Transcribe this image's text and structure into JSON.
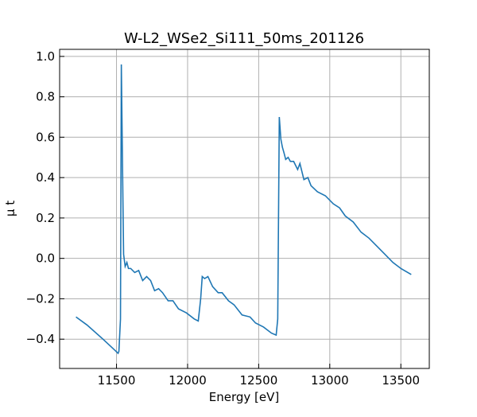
{
  "chart_data": {
    "type": "line",
    "title": "W-L2_WSe2_Si111_50ms_201126",
    "xlabel": "Energy [eV]",
    "ylabel": "μ t",
    "x": [
      11215,
      11293,
      11405,
      11489,
      11511,
      11517,
      11528,
      11534,
      11545,
      11550,
      11561,
      11573,
      11584,
      11600,
      11628,
      11656,
      11684,
      11712,
      11740,
      11768,
      11796,
      11824,
      11863,
      11897,
      11936,
      11992,
      12047,
      12075,
      12092,
      12103,
      12120,
      12143,
      12176,
      12215,
      12243,
      12288,
      12327,
      12383,
      12439,
      12478,
      12534,
      12590,
      12623,
      12634,
      12645,
      12656,
      12667,
      12679,
      12690,
      12707,
      12723,
      12746,
      12774,
      12790,
      12818,
      12846,
      12868,
      12913,
      12969,
      13025,
      13069,
      13109,
      13165,
      13220,
      13276,
      13332,
      13388,
      13444,
      13500,
      13573
    ],
    "series": [
      {
        "name": "μ t",
        "color": "#1f77b4",
        "values": [
          -0.29,
          -0.33,
          -0.4,
          -0.455,
          -0.47,
          -0.46,
          -0.3,
          0.96,
          0.3,
          0.02,
          -0.04,
          -0.02,
          -0.05,
          -0.05,
          -0.07,
          -0.06,
          -0.11,
          -0.09,
          -0.11,
          -0.16,
          -0.15,
          -0.17,
          -0.21,
          -0.21,
          -0.25,
          -0.27,
          -0.3,
          -0.31,
          -0.2,
          -0.09,
          -0.1,
          -0.09,
          -0.14,
          -0.17,
          -0.17,
          -0.21,
          -0.23,
          -0.28,
          -0.29,
          -0.32,
          -0.34,
          -0.37,
          -0.38,
          -0.3,
          0.7,
          0.59,
          0.55,
          0.52,
          0.49,
          0.5,
          0.48,
          0.48,
          0.44,
          0.47,
          0.39,
          0.4,
          0.36,
          0.33,
          0.31,
          0.27,
          0.25,
          0.21,
          0.18,
          0.13,
          0.1,
          0.06,
          0.02,
          -0.02,
          -0.05,
          -0.08
        ]
      }
    ],
    "xlim": [
      11100,
      13700
    ],
    "xticks": [
      11500,
      12000,
      12500,
      13000,
      13500
    ],
    "ylim": [
      -0.545,
      1.035
    ],
    "yticks": [
      {
        "value": -0.4,
        "label": "−0.4"
      },
      {
        "value": -0.2,
        "label": "−0.2"
      },
      {
        "value": 0,
        "label": "0.0"
      },
      0.2,
      0.4,
      0.6,
      0.8,
      {
        "value": 1,
        "label": "1.0"
      }
    ],
    "grid": true
  }
}
